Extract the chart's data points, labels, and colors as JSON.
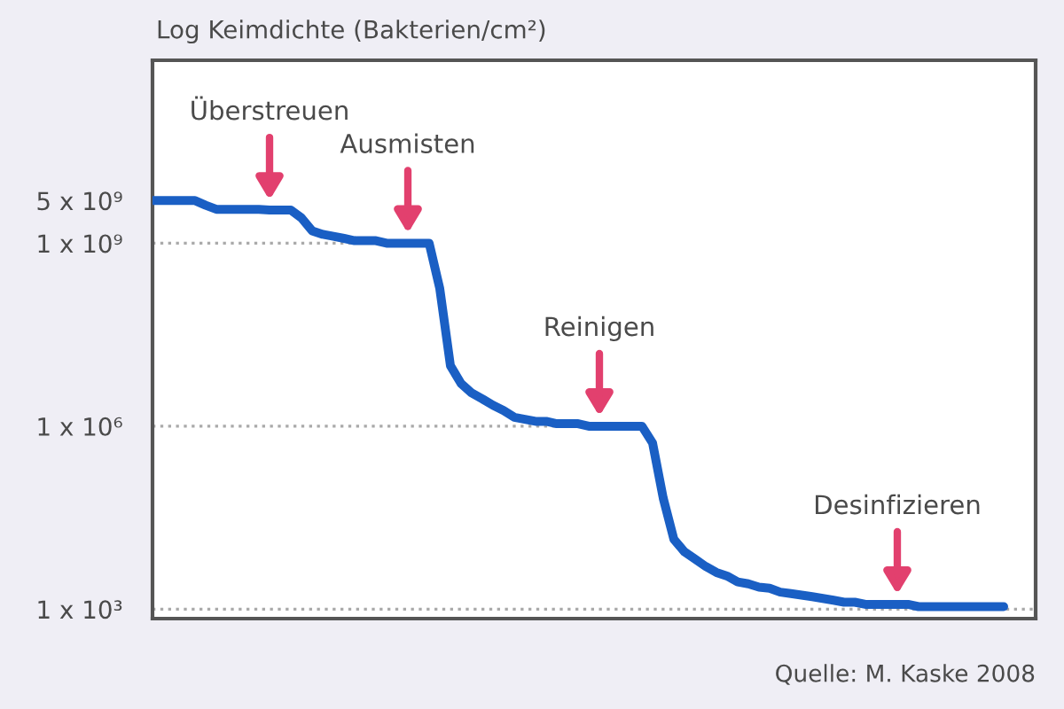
{
  "chart_data": {
    "type": "line",
    "ylabel": "Log Keimdichte (Bakterien/cm²)",
    "categories": [
      null,
      null,
      null,
      null,
      null,
      null,
      null,
      null,
      null,
      null,
      null,
      null,
      null,
      null,
      null,
      null,
      null,
      null,
      null,
      null,
      null,
      null,
      null,
      null,
      null,
      null,
      null,
      null,
      null,
      null,
      null,
      null,
      null,
      null,
      null,
      null,
      null,
      null,
      null,
      null,
      null,
      null,
      null,
      null,
      null,
      null,
      null,
      null,
      null,
      null,
      null,
      null,
      null,
      null,
      null,
      null,
      null,
      null,
      null,
      null,
      null,
      null,
      null,
      null,
      null,
      null,
      null,
      null,
      null,
      null,
      null,
      null,
      null,
      null,
      null,
      null,
      null,
      null,
      null,
      null,
      null
    ],
    "series": [
      {
        "color": "#1a5fc4",
        "values": [
          5000000000.0,
          5000000000.0,
          5000000000.0,
          5000000000.0,
          5000000000.0,
          4200000000.0,
          3600000000.0,
          3600000000.0,
          3600000000.0,
          3600000000.0,
          3600000000.0,
          3500000000.0,
          3500000000.0,
          3500000000.0,
          2600000000.0,
          1600000000.0,
          1400000000.0,
          1300000000.0,
          1200000000.0,
          1100000000.0,
          1100000000.0,
          1100000000.0,
          1000000000.0,
          1000000000.0,
          1000000000.0,
          1000000000.0,
          1000000000.0,
          180000000.0,
          9800000.0,
          5000000.0,
          3500000.0,
          2800000.0,
          2200000.0,
          1800000.0,
          1400000.0,
          1300000.0,
          1200000.0,
          1200000.0,
          1100000.0,
          1100000.0,
          1100000.0,
          1000000.0,
          1000000.0,
          1000000.0,
          1000000.0,
          1000000.0,
          1000000.0,
          530000.0,
          66000.0,
          14000.0,
          8700.0,
          6600.0,
          5000.0,
          4000.0,
          3500.0,
          2800.0,
          2600.0,
          2300.0,
          2200.0,
          1900.0,
          1800.0,
          1700.0,
          1600.0,
          1500.0,
          1400.0,
          1300.0,
          1300.0,
          1200.0,
          1200.0,
          1200.0,
          1200.0,
          1200.0,
          1100.0,
          1100.0,
          1100.0,
          1100.0,
          1100.0,
          1100.0,
          1100.0,
          1100.0,
          1100.0
        ]
      }
    ],
    "log": true,
    "ylim": [
      700,
      1000000000000.0
    ],
    "yticks": [
      {
        "value": 1000.0,
        "label": "1 x 10³"
      },
      {
        "value": 1000000.0,
        "label": "1 x 10⁶"
      },
      {
        "value": 1000000000.0,
        "label": "1 x 10⁹"
      },
      {
        "value": 5000000000.0,
        "label": "5 x 10⁹"
      }
    ],
    "ref_lines": [
      {
        "axis": "y",
        "value": 1000000000.0,
        "color": "#aaaaaa",
        "line_style": "dotted"
      },
      {
        "axis": "y",
        "value": 1000000.0,
        "color": "#aaaaaa",
        "line_style": "dotted"
      },
      {
        "axis": "y",
        "value": 1000.0,
        "color": "#aaaaaa",
        "line_style": "dotted"
      }
    ],
    "annotations": [
      "Überstreuen",
      "Ausmisten",
      "Reinigen",
      "Desinfizieren",
      "Quelle: M. Kaske 2008"
    ]
  }
}
